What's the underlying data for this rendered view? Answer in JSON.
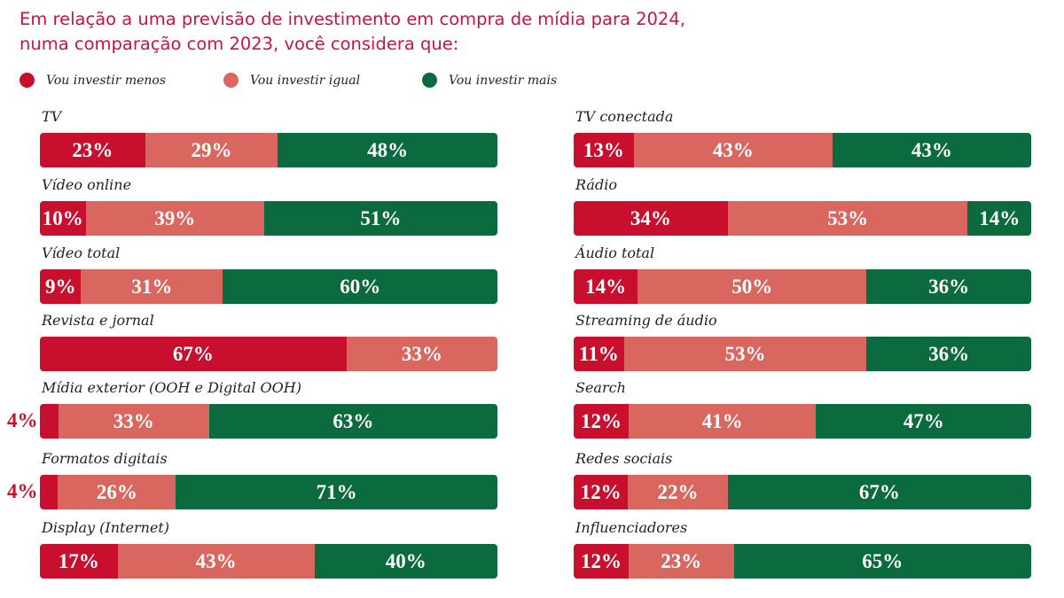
{
  "chart_data": {
    "type": "bar",
    "orientation": "horizontal-stacked-100",
    "title": "Em relação a uma previsão de investimento em compra de mídia para 2024, numa comparação com 2023, você considera que:",
    "legend_placement": "top-left",
    "series": [
      {
        "name": "Vou investir menos",
        "color": "#c8102e"
      },
      {
        "name": "Vou investir igual",
        "color": "#d9665f"
      },
      {
        "name": "Vou investir mais",
        "color": "#0b6b3f"
      }
    ],
    "columns": [
      [
        {
          "category": "TV",
          "values": [
            23,
            29,
            48
          ]
        },
        {
          "category": "Vídeo online",
          "values": [
            10,
            39,
            51
          ]
        },
        {
          "category": "Vídeo total",
          "values": [
            9,
            31,
            60
          ]
        },
        {
          "category": "Revista e jornal",
          "values": [
            67,
            33,
            null
          ]
        },
        {
          "category": "Mídia exterior (OOH e Digital OOH)",
          "values": [
            4,
            33,
            63
          ]
        },
        {
          "category": "Formatos digitais",
          "values": [
            4,
            26,
            71
          ]
        },
        {
          "category": "Display (Internet)",
          "values": [
            17,
            43,
            40
          ]
        }
      ],
      [
        {
          "category": "TV conectada",
          "values": [
            13,
            43,
            43
          ]
        },
        {
          "category": "Rádio",
          "values": [
            34,
            53,
            14
          ]
        },
        {
          "category": "Áudio total",
          "values": [
            14,
            50,
            36
          ]
        },
        {
          "category": "Streaming de áudio",
          "values": [
            11,
            53,
            36
          ]
        },
        {
          "category": "Search",
          "values": [
            12,
            41,
            47
          ]
        },
        {
          "category": "Redes sociais",
          "values": [
            12,
            22,
            67
          ]
        },
        {
          "category": "Influenciadores",
          "values": [
            12,
            23,
            65
          ]
        }
      ]
    ]
  }
}
